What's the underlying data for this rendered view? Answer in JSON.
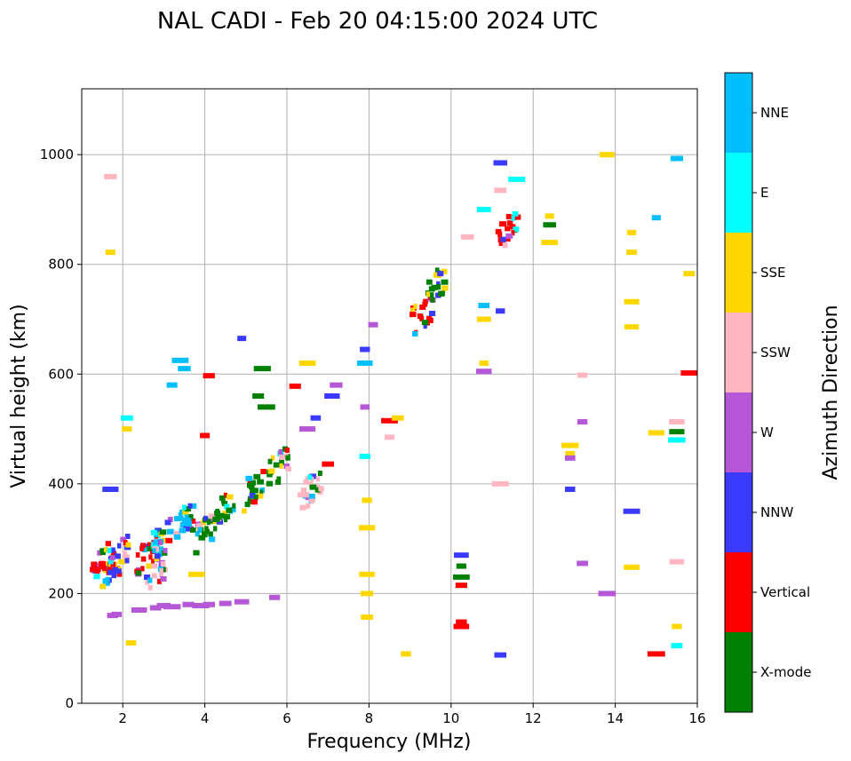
{
  "chart_data": {
    "type": "scatter",
    "title": "NAL CADI - Feb 20 04:15:00 2024 UTC",
    "xlabel": "Frequency (MHz)",
    "ylabel": "Virtual height (km)",
    "xlim": [
      1,
      16
    ],
    "ylim": [
      0,
      1120
    ],
    "xticks": [
      2,
      4,
      6,
      8,
      10,
      12,
      14,
      16
    ],
    "yticks": [
      0,
      200,
      400,
      600,
      800,
      1000
    ],
    "grid": true,
    "colorbar": {
      "label": "Azimuth Direction",
      "categories": [
        {
          "name": "X-mode",
          "color": "#008000"
        },
        {
          "name": "Vertical",
          "color": "#ff0000"
        },
        {
          "name": "NNW",
          "color": "#3a3aff"
        },
        {
          "name": "W",
          "color": "#b557d6"
        },
        {
          "name": "SSW",
          "color": "#ffb6c1"
        },
        {
          "name": "SSE",
          "color": "#ffd700"
        },
        {
          "name": "E",
          "color": "#00ffff"
        },
        {
          "name": "NNE",
          "color": "#00bfff"
        }
      ]
    },
    "cluster_seeds": [
      {
        "x": 1.5,
        "y": 255,
        "mode": "Vertical"
      },
      {
        "x": 1.7,
        "y": 245,
        "mode": "Vertical"
      },
      {
        "x": 1.9,
        "y": 265,
        "mode": "NNW"
      },
      {
        "x": 2.6,
        "y": 275,
        "mode": "Vertical"
      },
      {
        "x": 3.0,
        "y": 300,
        "mode": "NNE"
      },
      {
        "x": 3.5,
        "y": 330,
        "mode": "NNE"
      },
      {
        "x": 4.0,
        "y": 310,
        "mode": "X-mode"
      },
      {
        "x": 4.5,
        "y": 360,
        "mode": "X-mode"
      },
      {
        "x": 5.2,
        "y": 390,
        "mode": "X-mode"
      },
      {
        "x": 5.8,
        "y": 430,
        "mode": "X-mode"
      },
      {
        "x": 2.8,
        "y": 240,
        "mode": "SSW"
      },
      {
        "x": 6.6,
        "y": 390,
        "mode": "SSW"
      },
      {
        "x": 9.3,
        "y": 710,
        "mode": "Vertical"
      },
      {
        "x": 9.6,
        "y": 760,
        "mode": "X-mode"
      },
      {
        "x": 11.4,
        "y": 860,
        "mode": "Vertical"
      }
    ],
    "points": [
      {
        "x": 1.75,
        "y": 160,
        "mode": "W"
      },
      {
        "x": 1.85,
        "y": 162,
        "mode": "W"
      },
      {
        "x": 2.4,
        "y": 170,
        "mode": "W"
      },
      {
        "x": 2.8,
        "y": 174,
        "mode": "W"
      },
      {
        "x": 3.0,
        "y": 178,
        "mode": "W"
      },
      {
        "x": 3.2,
        "y": 176,
        "mode": "W"
      },
      {
        "x": 3.6,
        "y": 180,
        "mode": "W"
      },
      {
        "x": 3.9,
        "y": 178,
        "mode": "W"
      },
      {
        "x": 4.1,
        "y": 180,
        "mode": "W"
      },
      {
        "x": 4.5,
        "y": 182,
        "mode": "W"
      },
      {
        "x": 4.9,
        "y": 185,
        "mode": "W"
      },
      {
        "x": 5.7,
        "y": 193,
        "mode": "W"
      },
      {
        "x": 1.7,
        "y": 390,
        "mode": "NNW"
      },
      {
        "x": 1.7,
        "y": 960,
        "mode": "SSW"
      },
      {
        "x": 1.7,
        "y": 822,
        "mode": "SSE"
      },
      {
        "x": 2.2,
        "y": 110,
        "mode": "SSE"
      },
      {
        "x": 2.1,
        "y": 500,
        "mode": "SSE"
      },
      {
        "x": 2.1,
        "y": 520,
        "mode": "E"
      },
      {
        "x": 3.8,
        "y": 235,
        "mode": "SSE"
      },
      {
        "x": 3.2,
        "y": 580,
        "mode": "NNE"
      },
      {
        "x": 3.5,
        "y": 610,
        "mode": "NNE"
      },
      {
        "x": 3.4,
        "y": 625,
        "mode": "NNE"
      },
      {
        "x": 4.1,
        "y": 597,
        "mode": "Vertical"
      },
      {
        "x": 4.0,
        "y": 488,
        "mode": "Vertical"
      },
      {
        "x": 4.9,
        "y": 665,
        "mode": "NNW"
      },
      {
        "x": 5.4,
        "y": 610,
        "mode": "X-mode"
      },
      {
        "x": 5.3,
        "y": 560,
        "mode": "X-mode"
      },
      {
        "x": 5.5,
        "y": 540,
        "mode": "X-mode"
      },
      {
        "x": 6.5,
        "y": 620,
        "mode": "SSE"
      },
      {
        "x": 6.2,
        "y": 578,
        "mode": "Vertical"
      },
      {
        "x": 6.5,
        "y": 500,
        "mode": "W"
      },
      {
        "x": 6.7,
        "y": 520,
        "mode": "NNW"
      },
      {
        "x": 7.1,
        "y": 560,
        "mode": "NNW"
      },
      {
        "x": 7.2,
        "y": 580,
        "mode": "W"
      },
      {
        "x": 7.0,
        "y": 436,
        "mode": "Vertical"
      },
      {
        "x": 6.4,
        "y": 380,
        "mode": "SSW"
      },
      {
        "x": 7.9,
        "y": 620,
        "mode": "NNE"
      },
      {
        "x": 7.9,
        "y": 645,
        "mode": "NNW"
      },
      {
        "x": 8.1,
        "y": 690,
        "mode": "W"
      },
      {
        "x": 7.9,
        "y": 450,
        "mode": "E"
      },
      {
        "x": 7.9,
        "y": 540,
        "mode": "W"
      },
      {
        "x": 7.95,
        "y": 370,
        "mode": "SSE"
      },
      {
        "x": 7.95,
        "y": 320,
        "mode": "SSE"
      },
      {
        "x": 7.95,
        "y": 235,
        "mode": "SSE"
      },
      {
        "x": 7.95,
        "y": 200,
        "mode": "SSE"
      },
      {
        "x": 7.95,
        "y": 157,
        "mode": "SSE"
      },
      {
        "x": 8.5,
        "y": 485,
        "mode": "SSW"
      },
      {
        "x": 8.5,
        "y": 515,
        "mode": "Vertical"
      },
      {
        "x": 8.7,
        "y": 520,
        "mode": "SSE"
      },
      {
        "x": 8.9,
        "y": 90,
        "mode": "SSE"
      },
      {
        "x": 10.25,
        "y": 270,
        "mode": "NNW"
      },
      {
        "x": 10.25,
        "y": 250,
        "mode": "X-mode"
      },
      {
        "x": 10.25,
        "y": 230,
        "mode": "X-mode"
      },
      {
        "x": 10.25,
        "y": 215,
        "mode": "Vertical"
      },
      {
        "x": 10.25,
        "y": 148,
        "mode": "Vertical"
      },
      {
        "x": 10.25,
        "y": 140,
        "mode": "Vertical"
      },
      {
        "x": 11.2,
        "y": 88,
        "mode": "NNW"
      },
      {
        "x": 10.8,
        "y": 620,
        "mode": "SSE"
      },
      {
        "x": 10.8,
        "y": 605,
        "mode": "W"
      },
      {
        "x": 11.2,
        "y": 400,
        "mode": "SSW"
      },
      {
        "x": 11.2,
        "y": 715,
        "mode": "NNW"
      },
      {
        "x": 10.8,
        "y": 700,
        "mode": "SSE"
      },
      {
        "x": 10.8,
        "y": 725,
        "mode": "NNE"
      },
      {
        "x": 11.2,
        "y": 985,
        "mode": "NNW"
      },
      {
        "x": 11.2,
        "y": 935,
        "mode": "SSW"
      },
      {
        "x": 11.6,
        "y": 955,
        "mode": "E"
      },
      {
        "x": 10.4,
        "y": 850,
        "mode": "SSW"
      },
      {
        "x": 10.8,
        "y": 900,
        "mode": "E"
      },
      {
        "x": 12.4,
        "y": 888,
        "mode": "SSE"
      },
      {
        "x": 12.4,
        "y": 872,
        "mode": "X-mode"
      },
      {
        "x": 12.4,
        "y": 840,
        "mode": "SSE"
      },
      {
        "x": 12.9,
        "y": 470,
        "mode": "SSE"
      },
      {
        "x": 12.9,
        "y": 455,
        "mode": "SSE"
      },
      {
        "x": 12.9,
        "y": 447,
        "mode": "W"
      },
      {
        "x": 12.9,
        "y": 390,
        "mode": "NNW"
      },
      {
        "x": 13.2,
        "y": 598,
        "mode": "SSW"
      },
      {
        "x": 13.2,
        "y": 513,
        "mode": "W"
      },
      {
        "x": 13.2,
        "y": 255,
        "mode": "W"
      },
      {
        "x": 13.8,
        "y": 200,
        "mode": "W"
      },
      {
        "x": 13.8,
        "y": 1000,
        "mode": "SSE"
      },
      {
        "x": 14.4,
        "y": 858,
        "mode": "SSE"
      },
      {
        "x": 14.4,
        "y": 822,
        "mode": "SSE"
      },
      {
        "x": 14.4,
        "y": 732,
        "mode": "SSE"
      },
      {
        "x": 14.4,
        "y": 686,
        "mode": "SSE"
      },
      {
        "x": 14.4,
        "y": 350,
        "mode": "NNW"
      },
      {
        "x": 14.4,
        "y": 248,
        "mode": "SSE"
      },
      {
        "x": 15.0,
        "y": 885,
        "mode": "NNE"
      },
      {
        "x": 15.0,
        "y": 493,
        "mode": "SSE"
      },
      {
        "x": 15.0,
        "y": 90,
        "mode": "Vertical"
      },
      {
        "x": 15.5,
        "y": 993,
        "mode": "NNE"
      },
      {
        "x": 15.5,
        "y": 513,
        "mode": "SSW"
      },
      {
        "x": 15.5,
        "y": 495,
        "mode": "X-mode"
      },
      {
        "x": 15.5,
        "y": 480,
        "mode": "E"
      },
      {
        "x": 15.5,
        "y": 258,
        "mode": "SSW"
      },
      {
        "x": 15.5,
        "y": 140,
        "mode": "SSE"
      },
      {
        "x": 15.5,
        "y": 105,
        "mode": "E"
      },
      {
        "x": 15.8,
        "y": 783,
        "mode": "SSE"
      },
      {
        "x": 15.8,
        "y": 602,
        "mode": "Vertical"
      }
    ]
  }
}
